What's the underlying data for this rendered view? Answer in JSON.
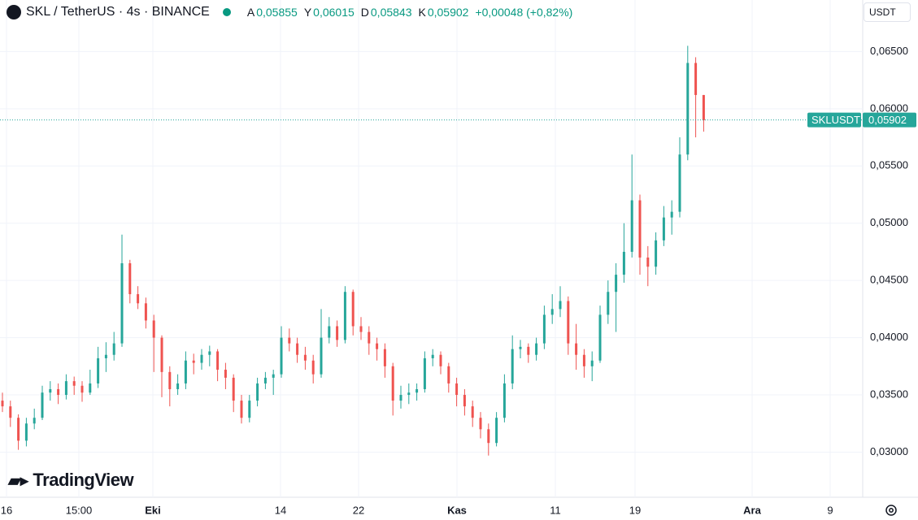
{
  "header": {
    "symbol": "SKL / TetherUS · 4s · BINANCE",
    "ohlc": [
      {
        "key": "A",
        "value": "0,05855"
      },
      {
        "key": "Y",
        "value": "0,06015"
      },
      {
        "key": "D",
        "value": "0,05843"
      },
      {
        "key": "K",
        "value": "0,05902"
      }
    ],
    "change": "+0,00048 (+0,82%)",
    "currency": "USDT"
  },
  "brand": "TradingView",
  "chart_data": {
    "type": "candlestick",
    "up_color": "#26a69a",
    "down_color": "#ef5350",
    "ylim": [
      0.0262,
      0.0695
    ],
    "yticks": [
      {
        "value": 0.065,
        "label": "0,06500"
      },
      {
        "value": 0.06,
        "label": "0,06000"
      },
      {
        "value": 0.055,
        "label": "0,05500"
      },
      {
        "value": 0.05,
        "label": "0,05000"
      },
      {
        "value": 0.045,
        "label": "0,04500"
      },
      {
        "value": 0.04,
        "label": "0,04000"
      },
      {
        "value": 0.035,
        "label": "0,03500"
      },
      {
        "value": 0.03,
        "label": "0,03000"
      }
    ],
    "xticks": [
      "16",
      "15:00",
      "Eki",
      "14",
      "22",
      "Kas",
      "11",
      "19",
      "Ara",
      "9"
    ],
    "last_price": {
      "name": "SKLUSDT",
      "value": 0.05902,
      "label": "0,05902"
    },
    "candles": [
      [
        0.0345,
        0.0352,
        0.0335,
        0.034
      ],
      [
        0.034,
        0.0345,
        0.0322,
        0.033
      ],
      [
        0.033,
        0.0333,
        0.0302,
        0.031
      ],
      [
        0.031,
        0.033,
        0.0305,
        0.0325
      ],
      [
        0.0325,
        0.0338,
        0.032,
        0.033
      ],
      [
        0.033,
        0.0358,
        0.0328,
        0.0352
      ],
      [
        0.0352,
        0.0362,
        0.0345,
        0.0355
      ],
      [
        0.0355,
        0.036,
        0.0342,
        0.035
      ],
      [
        0.035,
        0.0368,
        0.0346,
        0.0362
      ],
      [
        0.0362,
        0.0366,
        0.035,
        0.0358
      ],
      [
        0.0358,
        0.0362,
        0.0344,
        0.0352
      ],
      [
        0.0352,
        0.0372,
        0.035,
        0.036
      ],
      [
        0.036,
        0.0392,
        0.0356,
        0.0382
      ],
      [
        0.0382,
        0.0396,
        0.037,
        0.0385
      ],
      [
        0.0385,
        0.0405,
        0.038,
        0.0395
      ],
      [
        0.0395,
        0.049,
        0.0392,
        0.0465
      ],
      [
        0.0465,
        0.0468,
        0.043,
        0.0438
      ],
      [
        0.0438,
        0.0445,
        0.0425,
        0.043
      ],
      [
        0.043,
        0.0435,
        0.0408,
        0.0415
      ],
      [
        0.0415,
        0.042,
        0.037,
        0.04
      ],
      [
        0.04,
        0.0402,
        0.0348,
        0.037
      ],
      [
        0.037,
        0.0375,
        0.034,
        0.0355
      ],
      [
        0.0355,
        0.0368,
        0.035,
        0.036
      ],
      [
        0.036,
        0.0388,
        0.0355,
        0.038
      ],
      [
        0.038,
        0.0386,
        0.0368,
        0.0378
      ],
      [
        0.0378,
        0.039,
        0.0372,
        0.0385
      ],
      [
        0.0385,
        0.0393,
        0.0375,
        0.0388
      ],
      [
        0.0388,
        0.039,
        0.0362,
        0.0372
      ],
      [
        0.0372,
        0.0378,
        0.0355,
        0.0365
      ],
      [
        0.0365,
        0.0368,
        0.0335,
        0.0345
      ],
      [
        0.0345,
        0.035,
        0.0325,
        0.033
      ],
      [
        0.033,
        0.035,
        0.0326,
        0.0345
      ],
      [
        0.0345,
        0.0365,
        0.034,
        0.036
      ],
      [
        0.036,
        0.037,
        0.0355,
        0.0365
      ],
      [
        0.0365,
        0.0372,
        0.035,
        0.0368
      ],
      [
        0.0368,
        0.041,
        0.0365,
        0.04
      ],
      [
        0.04,
        0.0408,
        0.0388,
        0.0395
      ],
      [
        0.0395,
        0.04,
        0.0378,
        0.0385
      ],
      [
        0.0385,
        0.0392,
        0.0372,
        0.038
      ],
      [
        0.038,
        0.0385,
        0.036,
        0.0368
      ],
      [
        0.0368,
        0.0425,
        0.0365,
        0.04
      ],
      [
        0.04,
        0.0418,
        0.0395,
        0.041
      ],
      [
        0.041,
        0.0415,
        0.0392,
        0.0398
      ],
      [
        0.0398,
        0.0445,
        0.0395,
        0.044
      ],
      [
        0.044,
        0.0442,
        0.0402,
        0.041
      ],
      [
        0.041,
        0.0418,
        0.0398,
        0.0405
      ],
      [
        0.0405,
        0.041,
        0.0385,
        0.0395
      ],
      [
        0.0395,
        0.04,
        0.038,
        0.039
      ],
      [
        0.039,
        0.0395,
        0.0365,
        0.0375
      ],
      [
        0.0375,
        0.0378,
        0.0332,
        0.0345
      ],
      [
        0.0345,
        0.0358,
        0.0338,
        0.035
      ],
      [
        0.035,
        0.036,
        0.0342,
        0.0352
      ],
      [
        0.0352,
        0.036,
        0.0345,
        0.0355
      ],
      [
        0.0355,
        0.0388,
        0.0352,
        0.0382
      ],
      [
        0.0382,
        0.039,
        0.0375,
        0.0385
      ],
      [
        0.0385,
        0.0388,
        0.0368,
        0.0375
      ],
      [
        0.0375,
        0.0378,
        0.0352,
        0.036
      ],
      [
        0.036,
        0.0365,
        0.034,
        0.035
      ],
      [
        0.035,
        0.0355,
        0.0332,
        0.034
      ],
      [
        0.034,
        0.0345,
        0.0322,
        0.033
      ],
      [
        0.033,
        0.0335,
        0.0312,
        0.032
      ],
      [
        0.032,
        0.0325,
        0.0297,
        0.0308
      ],
      [
        0.0308,
        0.0335,
        0.0305,
        0.033
      ],
      [
        0.033,
        0.0368,
        0.0326,
        0.036
      ],
      [
        0.036,
        0.0402,
        0.0355,
        0.039
      ],
      [
        0.039,
        0.0398,
        0.0382,
        0.0392
      ],
      [
        0.0392,
        0.0395,
        0.0378,
        0.0385
      ],
      [
        0.0385,
        0.04,
        0.038,
        0.0395
      ],
      [
        0.0395,
        0.0428,
        0.039,
        0.042
      ],
      [
        0.042,
        0.0438,
        0.0412,
        0.0425
      ],
      [
        0.0425,
        0.0445,
        0.0418,
        0.0432
      ],
      [
        0.0432,
        0.0436,
        0.0385,
        0.0395
      ],
      [
        0.0395,
        0.0412,
        0.0372,
        0.0385
      ],
      [
        0.0385,
        0.039,
        0.0365,
        0.0375
      ],
      [
        0.0375,
        0.0388,
        0.0362,
        0.038
      ],
      [
        0.038,
        0.0428,
        0.0378,
        0.042
      ],
      [
        0.042,
        0.045,
        0.0412,
        0.044
      ],
      [
        0.044,
        0.0465,
        0.0405,
        0.0455
      ],
      [
        0.0455,
        0.05,
        0.0448,
        0.0475
      ],
      [
        0.0475,
        0.056,
        0.047,
        0.052
      ],
      [
        0.052,
        0.0525,
        0.0455,
        0.047
      ],
      [
        0.047,
        0.048,
        0.0445,
        0.0462
      ],
      [
        0.0462,
        0.0492,
        0.0455,
        0.0485
      ],
      [
        0.0485,
        0.0515,
        0.048,
        0.0505
      ],
      [
        0.0505,
        0.052,
        0.049,
        0.051
      ],
      [
        0.051,
        0.0575,
        0.0505,
        0.056
      ],
      [
        0.056,
        0.0655,
        0.0555,
        0.064
      ],
      [
        0.064,
        0.0645,
        0.0575,
        0.0612
      ],
      [
        0.0612,
        0.0612,
        0.058,
        0.059
      ]
    ]
  }
}
